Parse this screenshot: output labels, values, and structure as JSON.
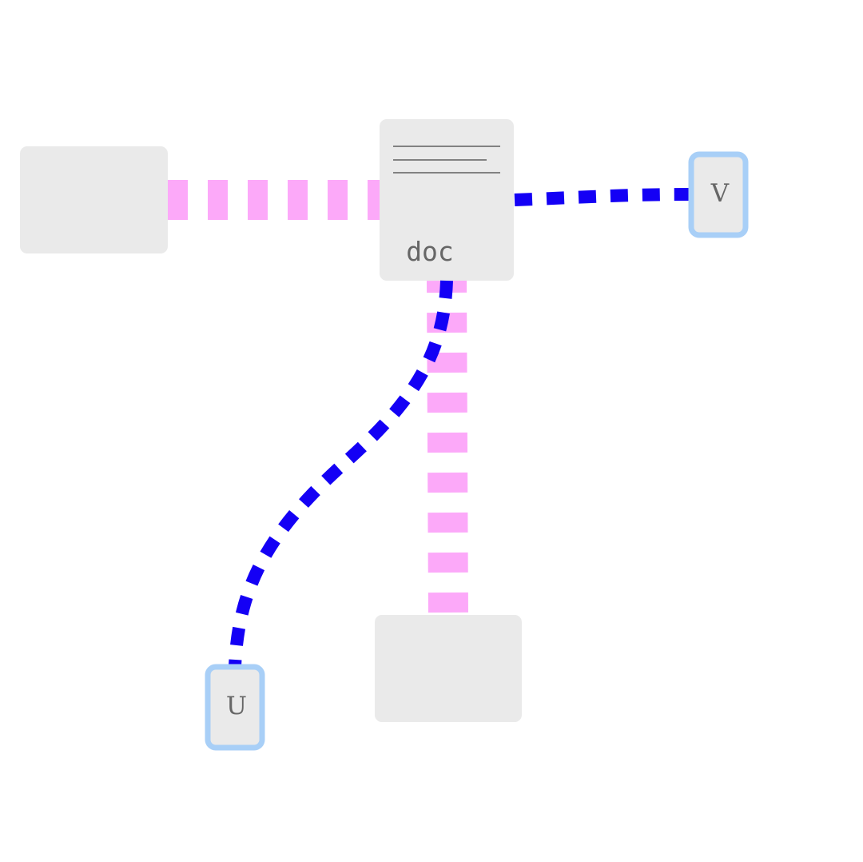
{
  "diagram": {
    "nodes": [
      {
        "id": "left-box",
        "label": ""
      },
      {
        "id": "doc-node",
        "label": "doc"
      },
      {
        "id": "bottom-box",
        "label": ""
      },
      {
        "id": "port-v",
        "label": "V"
      },
      {
        "id": "port-u",
        "label": "U"
      }
    ],
    "edges": [
      {
        "from": "left-box",
        "to": "doc-node",
        "style": "thick dashed",
        "color": "#fca9f9"
      },
      {
        "from": "doc-node",
        "to": "bottom-box",
        "style": "thick dashed",
        "color": "#fca9f9"
      },
      {
        "from": "doc-node",
        "to": "port-v",
        "style": "dashed",
        "color": "#1400f5"
      },
      {
        "from": "doc-node",
        "to": "port-u",
        "style": "dashed curved",
        "color": "#1400f5"
      }
    ],
    "colors": {
      "node_fill": "#eaeaea",
      "port_border": "#a8cff7",
      "pink_edge": "#fca9f9",
      "blue_edge": "#1400f5",
      "label_text": "#666666"
    }
  }
}
